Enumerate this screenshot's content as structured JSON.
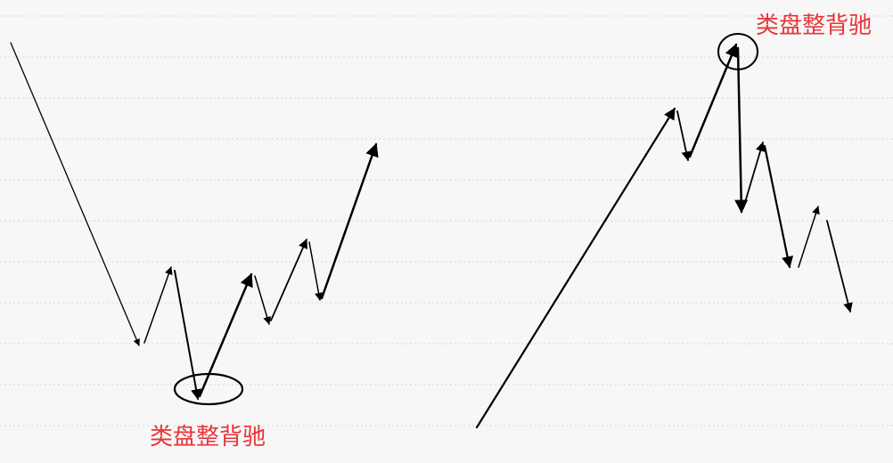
{
  "annotations": {
    "left_label": "类盘整背驰",
    "right_label": "类盘整背驰"
  },
  "colors": {
    "background": "#f7f7f7",
    "grid": "#d4d4d4",
    "line": "#000000",
    "label": "#e8353a"
  },
  "icons": {
    "arrow": "arrowhead",
    "highlight": "ellipse-outline"
  }
}
